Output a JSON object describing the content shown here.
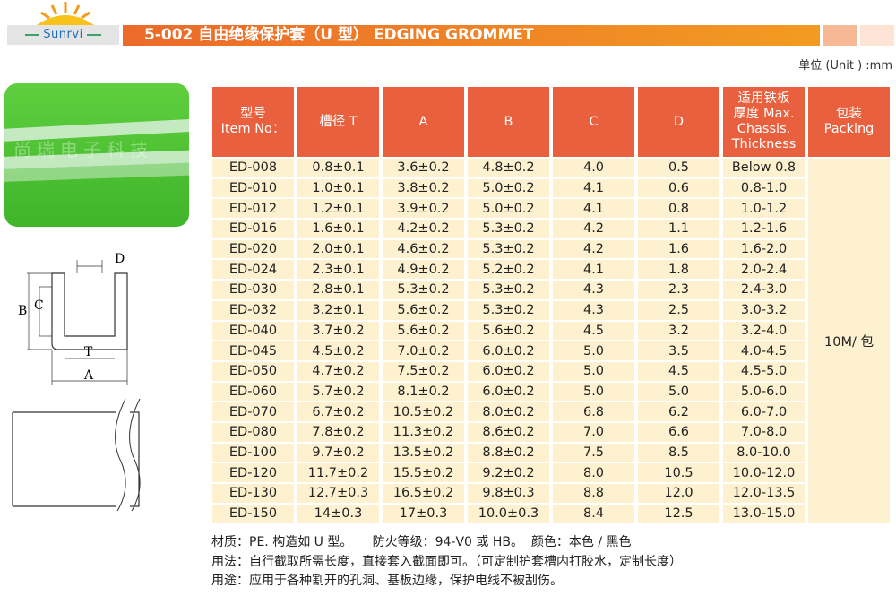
{
  "logo": {
    "brand": "Sunrvi"
  },
  "header": {
    "title": "5-002 自由绝缘保护套（U 型） EDGING GROMMET",
    "unit": "单位 (Unit ) :mm"
  },
  "photo": {
    "watermark": "尚瑞电子科技"
  },
  "diagram": {
    "labels": [
      "D",
      "B",
      "C",
      "T",
      "A"
    ]
  },
  "table": {
    "headers": [
      "型号\nItem No：",
      "槽径 T",
      "A",
      "B",
      "C",
      "D",
      "适用铁板\n厚度 Max.\nChassis.\nThickness",
      "包装\nPacking"
    ],
    "packing": "10M/ 包",
    "rows": [
      [
        "ED-008",
        "0.8±0.1",
        "3.6±0.2",
        "4.8±0.2",
        "4.0",
        "0.5",
        "Below 0.8"
      ],
      [
        "ED-010",
        "1.0±0.1",
        "3.8±0.2",
        "5.0±0.2",
        "4.1",
        "0.6",
        "0.8-1.0"
      ],
      [
        "ED-012",
        "1.2±0.1",
        "3.9±0.2",
        "5.0±0.2",
        "4.1",
        "0.8",
        "1.0-1.2"
      ],
      [
        "ED-016",
        "1.6±0.1",
        "4.2±0.2",
        "5.3±0.2",
        "4.2",
        "1.1",
        "1.2-1.6"
      ],
      [
        "ED-020",
        "2.0±0.1",
        "4.6±0.2",
        "5.3±0.2",
        "4.2",
        "1.6",
        "1.6-2.0"
      ],
      [
        "ED-024",
        "2.3±0.1",
        "4.9±0.2",
        "5.2±0.2",
        "4.1",
        "1.8",
        "2.0-2.4"
      ],
      [
        "ED-030",
        "2.8±0.1",
        "5.3±0.2",
        "5.3±0.2",
        "4.3",
        "2.3",
        "2.4-3.0"
      ],
      [
        "ED-032",
        "3.2±0.1",
        "5.6±0.2",
        "5.3±0.2",
        "4.3",
        "2.5",
        "3.0-3.2"
      ],
      [
        "ED-040",
        "3.7±0.2",
        "5.6±0.2",
        "5.6±0.2",
        "4.5",
        "3.2",
        "3.2-4.0"
      ],
      [
        "ED-045",
        "4.5±0.2",
        "7.0±0.2",
        "6.0±0.2",
        "5.0",
        "3.5",
        "4.0-4.5"
      ],
      [
        "ED-050",
        "4.7±0.2",
        "7.5±0.2",
        "6.0±0.2",
        "5.0",
        "4.5",
        "4.5-5.0"
      ],
      [
        "ED-060",
        "5.7±0.2",
        "8.1±0.2",
        "6.0±0.2",
        "5.0",
        "5.0",
        "5.0-6.0"
      ],
      [
        "ED-070",
        "6.7±0.2",
        "10.5±0.2",
        "8.0±0.2",
        "6.8",
        "6.2",
        "6.0-7.0"
      ],
      [
        "ED-080",
        "7.8±0.2",
        "11.3±0.2",
        "8.6±0.2",
        "7.0",
        "6.6",
        "7.0-8.0"
      ],
      [
        "ED-100",
        "9.7±0.2",
        "13.5±0.2",
        "8.8±0.2",
        "7.5",
        "8.5",
        "8.0-10.0"
      ],
      [
        "ED-120",
        "11.7±0.2",
        "15.5±0.2",
        "9.2±0.2",
        "8.0",
        "10.5",
        "10.0-12.0"
      ],
      [
        "ED-130",
        "12.7±0.3",
        "16.5±0.2",
        "9.8±0.3",
        "8.8",
        "12.0",
        "12.0-13.5"
      ],
      [
        "ED-150",
        "14±0.3",
        "17±0.3",
        "10.0±0.3",
        "8.4",
        "12.5",
        "13.0-15.0"
      ]
    ]
  },
  "notes": [
    "材质：PE. 构造如 U 型。     防火等级：94-V0 或 HB。  颜色：本色 / 黑色",
    "用法：自行截取所需长度，直接套入截面即可。（可定制护套槽内打胶水，定制长度）",
    "用途：应用于各种割开的孔洞、基板边缘，保护电线不被刮伤。"
  ],
  "colors": {
    "header_orange": "#e9603e",
    "cell_bg": "#fdf1cf",
    "title_gradient_start": "#ec6a2a",
    "title_gradient_end": "#f29b22"
  }
}
